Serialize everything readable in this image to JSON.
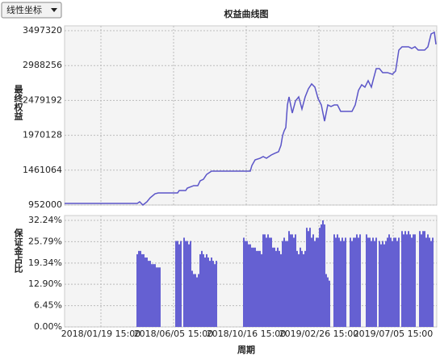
{
  "controls": {
    "scale_select": "线性坐标"
  },
  "chart_data": [
    {
      "type": "line",
      "title": "权益曲线图",
      "ylabel": "最终权益",
      "color": "#5b55c8",
      "grid": true,
      "x": [
        0,
        90,
        93,
        97,
        102,
        106,
        112,
        116,
        120,
        140,
        142,
        150,
        152,
        160,
        165,
        168,
        172,
        176,
        182,
        185,
        188,
        225,
        230,
        232,
        236,
        242,
        246,
        250,
        256,
        260,
        265,
        268,
        270,
        272,
        274,
        276,
        278,
        282,
        286,
        290,
        294,
        298,
        302,
        306,
        310,
        314,
        318,
        322,
        326,
        330,
        334,
        338,
        342,
        356,
        360,
        364,
        368,
        372,
        376,
        380,
        382,
        386,
        390,
        394,
        400,
        406,
        410,
        414,
        418,
        426,
        430,
        434,
        438,
        446,
        450,
        454,
        458,
        460
      ],
      "values": [
        975000,
        975000,
        999000,
        952000,
        999000,
        1058000,
        1117000,
        1129000,
        1129000,
        1129000,
        1164000,
        1164000,
        1199000,
        1235000,
        1235000,
        1306000,
        1329000,
        1400000,
        1447000,
        1447000,
        1447000,
        1447000,
        1447000,
        1529000,
        1612000,
        1635000,
        1659000,
        1635000,
        1683000,
        1706000,
        1730000,
        1824000,
        1965000,
        2036000,
        2083000,
        2413000,
        2531000,
        2295000,
        2472000,
        2531000,
        2354000,
        2531000,
        2649000,
        2720000,
        2673000,
        2507000,
        2413000,
        2177000,
        2413000,
        2390000,
        2413000,
        2413000,
        2319000,
        2319000,
        2413000,
        2625000,
        2708000,
        2673000,
        2767000,
        2673000,
        2767000,
        2943000,
        2943000,
        2885000,
        2885000,
        2861000,
        2908000,
        3214000,
        3262000,
        3262000,
        3238000,
        3262000,
        3214000,
        3214000,
        3262000,
        3450000,
        3474000,
        3297000
      ],
      "xlim": [
        0,
        461
      ],
      "ylim": [
        952000,
        3497320
      ],
      "yticks": [
        952000,
        1461064,
        1970128,
        2479192,
        2988256,
        3497320
      ]
    },
    {
      "type": "bar",
      "ylabel": "保证金占比",
      "xlabel": "周期",
      "color": "#6560d2",
      "grid": true,
      "x": [
        90,
        92,
        94,
        96,
        98,
        100,
        102,
        104,
        106,
        108,
        110,
        112,
        114,
        116,
        118,
        138,
        140,
        142,
        144,
        148,
        150,
        152,
        154,
        156,
        158,
        160,
        162,
        164,
        166,
        168,
        170,
        172,
        174,
        176,
        178,
        180,
        182,
        184,
        186,
        188,
        222,
        224,
        226,
        228,
        230,
        232,
        234,
        236,
        238,
        240,
        242,
        244,
        246,
        248,
        250,
        252,
        254,
        256,
        258,
        260,
        262,
        264,
        266,
        268,
        270,
        272,
        274,
        276,
        278,
        280,
        282,
        284,
        286,
        288,
        290,
        292,
        294,
        296,
        298,
        300,
        302,
        304,
        306,
        308,
        310,
        312,
        314,
        316,
        318,
        320,
        322,
        324,
        326,
        328,
        334,
        336,
        338,
        340,
        342,
        344,
        346,
        348,
        354,
        356,
        358,
        360,
        362,
        364,
        366,
        374,
        376,
        378,
        380,
        382,
        384,
        386,
        390,
        392,
        394,
        396,
        398,
        400,
        402,
        404,
        406,
        408,
        410,
        412,
        414,
        418,
        420,
        422,
        424,
        426,
        428,
        430,
        432,
        434,
        440,
        442,
        444,
        446,
        448,
        450,
        452,
        454,
        456
      ],
      "values": [
        22,
        23,
        23,
        22,
        22,
        21,
        21,
        20,
        20,
        19,
        19,
        19,
        18,
        18,
        18,
        26,
        26,
        25,
        26,
        27,
        26,
        26,
        25,
        26,
        17,
        16,
        16,
        15,
        16,
        22,
        23,
        22,
        21,
        22,
        21,
        20,
        21,
        20,
        19,
        20,
        27,
        26,
        26,
        25,
        25,
        24,
        24,
        24,
        23,
        23,
        23,
        22,
        28,
        28,
        27,
        28,
        27,
        27,
        24,
        24,
        23,
        24,
        23,
        22,
        26,
        27,
        26,
        26,
        29,
        28,
        28,
        27,
        28,
        23,
        22,
        24,
        23,
        22,
        23,
        30,
        29,
        30,
        27,
        28,
        26,
        27,
        27,
        30,
        31,
        32.24,
        31,
        16,
        15,
        14,
        28,
        27,
        28,
        27,
        26,
        27,
        26,
        27,
        27,
        26,
        27,
        27,
        28,
        27,
        28,
        28,
        27,
        27,
        26,
        27,
        26,
        27,
        26,
        25,
        26,
        25,
        26,
        27,
        28,
        27,
        26,
        27,
        27,
        26,
        27,
        29,
        28,
        29,
        28,
        29,
        28,
        27,
        28,
        28,
        29,
        28,
        29,
        29,
        27,
        28,
        27,
        26,
        27
      ],
      "xlim": [
        0,
        461
      ],
      "ylim": [
        0,
        32.24
      ],
      "yticks": [
        {
          "value": 0,
          "label": "0.00%"
        },
        {
          "value": 6.45,
          "label": "6.45%"
        },
        {
          "value": 12.9,
          "label": "12.90%"
        },
        {
          "value": 19.34,
          "label": "19.34%"
        },
        {
          "value": 25.79,
          "label": "25.79%"
        },
        {
          "value": 32.24,
          "label": "32.24%"
        }
      ],
      "xticks": [
        {
          "value": 45,
          "label": "2018/01/19 15:00"
        },
        {
          "value": 135,
          "label": "2018/06/05 15:00"
        },
        {
          "value": 225,
          "label": "2018/10/16 15:00"
        },
        {
          "value": 315,
          "label": "2019/02/26 15:00"
        },
        {
          "value": 407,
          "label": "2019/07/05 15:00"
        }
      ]
    }
  ]
}
